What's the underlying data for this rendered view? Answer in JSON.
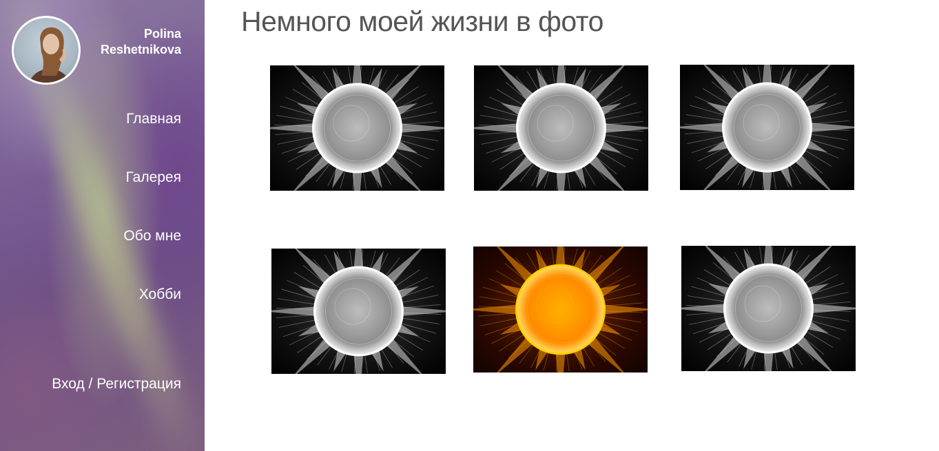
{
  "profile": {
    "name": "Polina Reshetnikova"
  },
  "nav": {
    "items": [
      {
        "label": "Главная"
      },
      {
        "label": "Галерея"
      },
      {
        "label": "Обо мне"
      },
      {
        "label": "Хобби"
      }
    ],
    "login_label": "Вход / Регистрация"
  },
  "main": {
    "title": "Немного моей жизни в фото"
  },
  "gallery": {
    "photos": [
      {
        "style": "grayscale"
      },
      {
        "style": "grayscale"
      },
      {
        "style": "grayscale"
      },
      {
        "style": "grayscale"
      },
      {
        "style": "color"
      },
      {
        "style": "grayscale"
      }
    ]
  },
  "colors": {
    "title": "#555555",
    "nav_text": "#ffffff",
    "sun_gray": "#d9d9d9",
    "sun_orange": "#ff9a00"
  }
}
